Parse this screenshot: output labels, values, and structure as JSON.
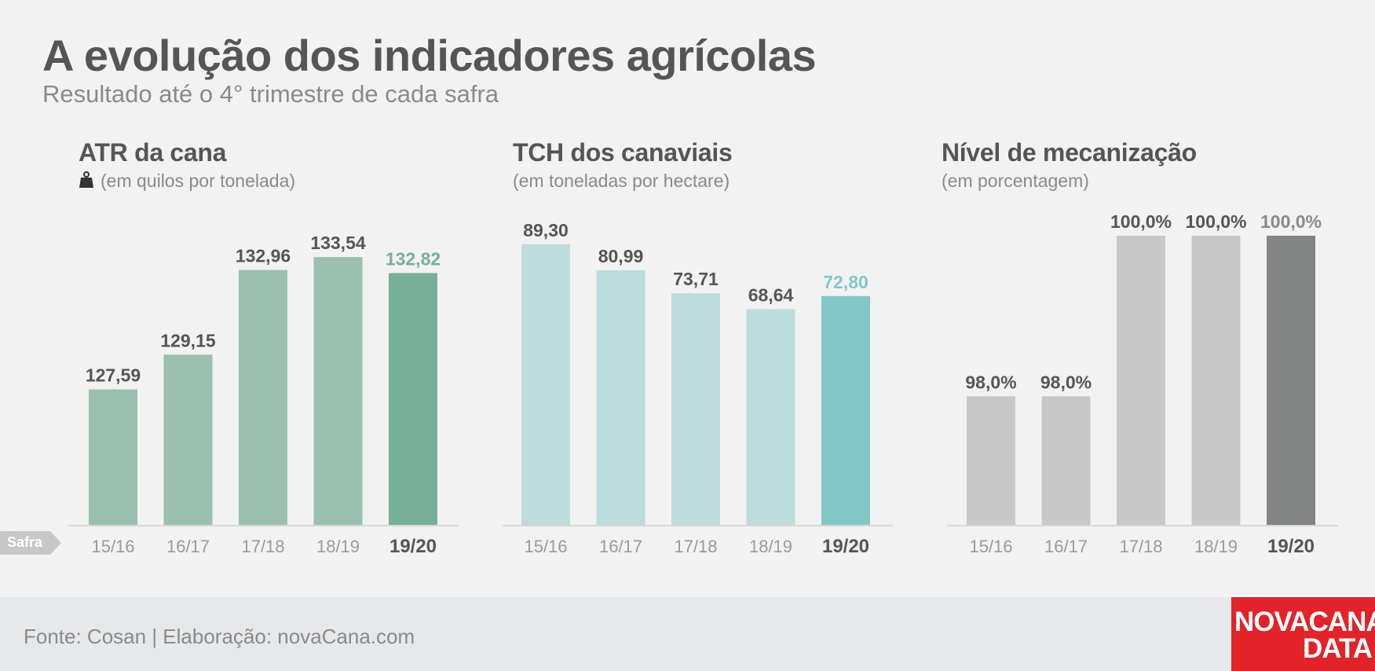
{
  "header": {
    "title": "A evolução dos indicadores agrícolas",
    "subtitle": "Resultado até o 4° trimestre de cada safra"
  },
  "axis_tag": "Safra",
  "footer": {
    "source": "Fonte: Cosan | Elaboração: novaCana.com",
    "logo_line1": "NOVACANA",
    "logo_line2": "DATA"
  },
  "colors": {
    "logo_red": "#e2232a",
    "atr_bar": "#9bc0af",
    "atr_highlight": "#78af98",
    "tch_bar": "#bedcde",
    "tch_highlight": "#84c7c7",
    "mec_bar": "#c9c8c8",
    "mec_highlight": "#838584"
  },
  "panels": [
    {
      "title": "ATR da cana",
      "unit": "(em quilos por tonelada)",
      "icon": "weight-icon"
    },
    {
      "title": "TCH dos canaviais",
      "unit": "(em toneladas por hectare)"
    },
    {
      "title": "Nível de mecanização",
      "unit": "(em porcentagem)"
    }
  ],
  "chart_data": [
    {
      "type": "bar",
      "title": "ATR da cana",
      "ylabel": "(em quilos por tonelada)",
      "categories": [
        "15/16",
        "16/17",
        "17/18",
        "18/19",
        "19/20"
      ],
      "values": [
        127.59,
        129.15,
        132.96,
        133.54,
        132.82
      ],
      "labels": [
        "127,59",
        "129,15",
        "132,96",
        "133,54",
        "132,82"
      ],
      "highlight_index": 4,
      "bar_color": "#9bc0af",
      "highlight_color": "#78af98",
      "highlight_label_color": "#78af98",
      "ylim": [
        121.5,
        134.5
      ],
      "grid": false,
      "legend": "none"
    },
    {
      "type": "bar",
      "title": "TCH dos canaviais",
      "ylabel": "(em toneladas por hectare)",
      "categories": [
        "15/16",
        "16/17",
        "17/18",
        "18/19",
        "19/20"
      ],
      "values": [
        89.3,
        80.99,
        73.71,
        68.64,
        72.8
      ],
      "labels": [
        "89,30",
        "80,99",
        "73,71",
        "68,64",
        "72,80"
      ],
      "highlight_index": 4,
      "bar_color": "#bedcde",
      "highlight_color": "#84c7c7",
      "highlight_label_color": "#84c7c7",
      "ylim": [
        0,
        92
      ],
      "grid": false,
      "legend": "none"
    },
    {
      "type": "bar",
      "title": "Nível de mecanização",
      "ylabel": "(em porcentagem)",
      "categories": [
        "15/16",
        "16/17",
        "17/18",
        "18/19",
        "19/20"
      ],
      "values": [
        98.0,
        98.0,
        100.0,
        100.0,
        100.0
      ],
      "labels": [
        "98,0%",
        "98,0%",
        "100,0%",
        "100,0%",
        "100,0%"
      ],
      "highlight_index": 4,
      "bar_color": "#c9c8c8",
      "highlight_color": "#838584",
      "highlight_label_color": "#8a8a8a",
      "ylim": [
        96.4,
        100.0
      ],
      "grid": false,
      "legend": "none"
    }
  ]
}
